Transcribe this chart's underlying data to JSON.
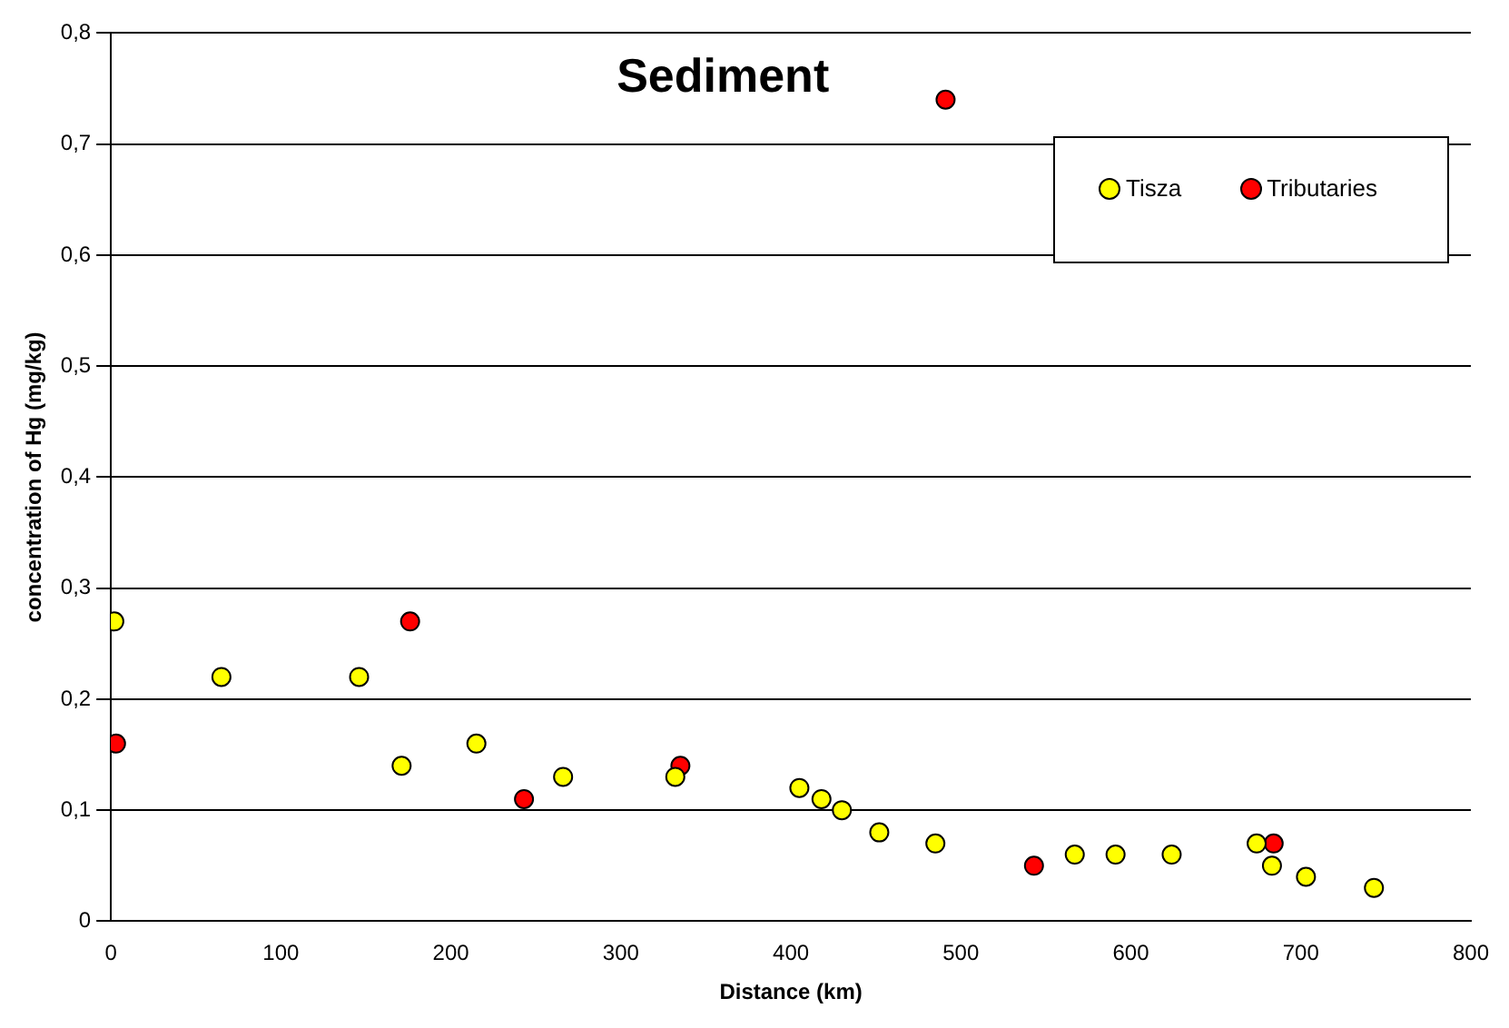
{
  "chart_data": {
    "type": "scatter",
    "title": "Sediment",
    "xlabel": "Distance (km)",
    "ylabel": "concentration of Hg (mg/kg)",
    "xlim": [
      0,
      800
    ],
    "xticks": [
      0,
      100,
      200,
      300,
      400,
      500,
      600,
      700,
      800
    ],
    "ylim": [
      0,
      0.8
    ],
    "yticks": [
      0,
      {
        "value": 0.1,
        "label": "0,1"
      },
      {
        "value": 0.2,
        "label": "0,2"
      },
      {
        "value": 0.3,
        "label": "0,3"
      },
      {
        "value": 0.4,
        "label": "0,4"
      },
      {
        "value": 0.5,
        "label": "0,5"
      },
      {
        "value": 0.6,
        "label": "0,6"
      },
      {
        "value": 0.7,
        "label": "0,7"
      },
      {
        "value": 0.8,
        "label": "0,8"
      }
    ],
    "grid": "y",
    "legend": "top right",
    "marker": "circle",
    "series": [
      {
        "name": "Tisza",
        "color": "#ffff00",
        "x": [
          2,
          65,
          146,
          171,
          215,
          266,
          332,
          405,
          418,
          430,
          452,
          485,
          567,
          591,
          624,
          674,
          683,
          703,
          743
        ],
        "values": [
          0.27,
          0.22,
          0.22,
          0.14,
          0.16,
          0.13,
          0.13,
          0.12,
          0.11,
          0.1,
          0.08,
          0.07,
          0.06,
          0.06,
          0.06,
          0.07,
          0.05,
          0.04,
          0.03
        ]
      },
      {
        "name": "Tributaries",
        "color": "#ff0000",
        "x": [
          3,
          176,
          243,
          335,
          491,
          543,
          684
        ],
        "values": [
          0.16,
          0.27,
          0.11,
          0.14,
          0.74,
          0.05,
          0.07
        ]
      }
    ]
  }
}
